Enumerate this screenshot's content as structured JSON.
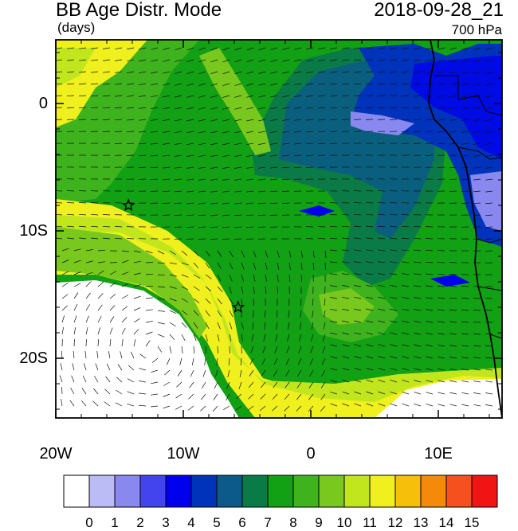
{
  "header": {
    "title": "BB Age Distr. Mode",
    "units": "(days)",
    "datetime": "2018-09-28_21",
    "level": "700 hPa"
  },
  "map": {
    "lon_ticks": [
      "20W",
      "10W",
      "0",
      "10E"
    ],
    "lat_ticks": [
      "0",
      "10S",
      "20S"
    ],
    "markers": [
      {
        "name": "star-marker-1",
        "lon": -14.3,
        "lat": -8.0
      },
      {
        "name": "star-marker-2",
        "lon": -5.7,
        "lat": -16.0
      }
    ]
  },
  "colorbar": {
    "labels": [
      "0",
      "1",
      "2",
      "3",
      "4",
      "5",
      "6",
      "7",
      "8",
      "9",
      "10",
      "11",
      "12",
      "13",
      "14",
      "15"
    ],
    "colors": [
      "#ffffff",
      "#bbbbf6",
      "#8888ee",
      "#4444ee",
      "#0000ee",
      "#0033bb",
      "#0b5a8a",
      "#0a7a46",
      "#12a014",
      "#3fb31e",
      "#78c81e",
      "#c2e61e",
      "#f0f01e",
      "#f5bf0a",
      "#f58a0a",
      "#f5501e",
      "#f01414"
    ]
  }
}
